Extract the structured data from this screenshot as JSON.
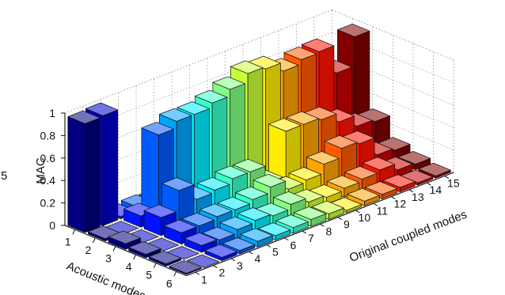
{
  "chart_data": {
    "type": "bar3d",
    "zlabel": "MAC",
    "xlabel": "Acoustic modes",
    "ylabel": "Original coupled modes",
    "acoustic_modes": [
      1,
      2,
      3,
      4,
      5,
      6
    ],
    "coupled_modes": [
      1,
      2,
      3,
      4,
      5,
      6,
      7,
      8,
      9,
      10,
      11,
      12,
      13,
      14,
      15
    ],
    "z_ticks": [
      "0",
      "0.2",
      "0.4",
      "0.6",
      "0.8",
      "1"
    ],
    "zlim": [
      0,
      1
    ],
    "grid": true,
    "colormap": "jet",
    "edge_label_fragment": "5",
    "values": [
      [
        0.97,
        0.02,
        0.05,
        0.03,
        0.02,
        0.01
      ],
      [
        0.98,
        0.0,
        0.0,
        0.0,
        0.0,
        0.0
      ],
      [
        0.02,
        0.1,
        0.16,
        0.1,
        0.06,
        0.03
      ],
      [
        0.04,
        0.76,
        0.34,
        0.1,
        0.05,
        0.03
      ],
      [
        0.03,
        0.82,
        0.2,
        0.12,
        0.08,
        0.05
      ],
      [
        0.02,
        0.82,
        0.22,
        0.12,
        0.1,
        0.04
      ],
      [
        0.02,
        0.86,
        0.26,
        0.15,
        0.08,
        0.05
      ],
      [
        0.02,
        0.92,
        0.26,
        0.2,
        0.12,
        0.06
      ],
      [
        0.01,
        1.0,
        0.1,
        0.12,
        0.08,
        0.05
      ],
      [
        0.01,
        0.98,
        0.5,
        0.14,
        0.06,
        0.02
      ],
      [
        0.02,
        0.9,
        0.5,
        0.22,
        0.08,
        0.04
      ],
      [
        0.01,
        0.94,
        0.48,
        0.3,
        0.1,
        0.04
      ],
      [
        0.04,
        0.95,
        0.4,
        0.28,
        0.12,
        0.04
      ],
      [
        0.01,
        0.7,
        0.3,
        0.12,
        0.06,
        0.02
      ],
      [
        0.02,
        0.96,
        0.28,
        0.1,
        0.05,
        0.02
      ]
    ]
  }
}
